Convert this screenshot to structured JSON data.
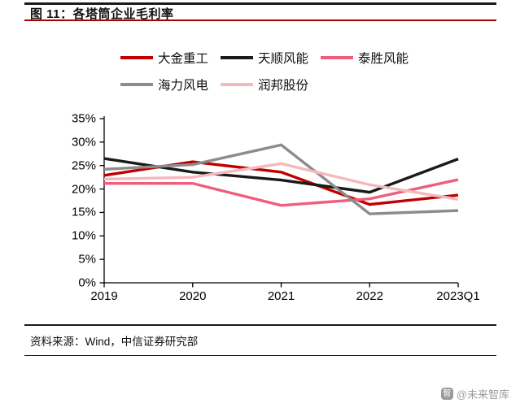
{
  "header": {
    "title": "图 11：各塔筒企业毛利率"
  },
  "legend": {
    "row_breaks": [
      3,
      2
    ]
  },
  "chart_data": {
    "type": "line",
    "title": "图 11：各塔筒企业毛利率",
    "x": [
      "2019",
      "2020",
      "2021",
      "2022",
      "2023Q1"
    ],
    "series": [
      {
        "name": "大金重工",
        "color": "#c00000",
        "values": [
          22.9,
          25.8,
          23.6,
          16.7,
          18.7
        ]
      },
      {
        "name": "天顺风能",
        "color": "#1a1a1a",
        "values": [
          26.5,
          23.6,
          21.9,
          19.3,
          26.4
        ]
      },
      {
        "name": "泰胜风能",
        "color": "#ee5f7d",
        "values": [
          21.2,
          21.2,
          16.5,
          17.9,
          22.0
        ]
      },
      {
        "name": "海力风电",
        "color": "#8c8c8c",
        "values": [
          24.2,
          25.2,
          29.4,
          14.7,
          15.4
        ]
      },
      {
        "name": "润邦股份",
        "color": "#f5b8bd",
        "values": [
          22.1,
          22.5,
          25.4,
          20.9,
          17.8
        ]
      }
    ],
    "y_ticks": [
      "35%",
      "30%",
      "25%",
      "20%",
      "15%",
      "10%",
      "5%",
      "0%"
    ],
    "ylim": [
      0,
      35
    ],
    "xlabel": "",
    "ylabel": "",
    "unit": "%",
    "grid": false,
    "legend_position": "top"
  },
  "footer": {
    "source": "资料来源：Wind，中信证券研究部"
  },
  "watermark": {
    "icon_glyph": "智",
    "text": "@未来智库"
  }
}
